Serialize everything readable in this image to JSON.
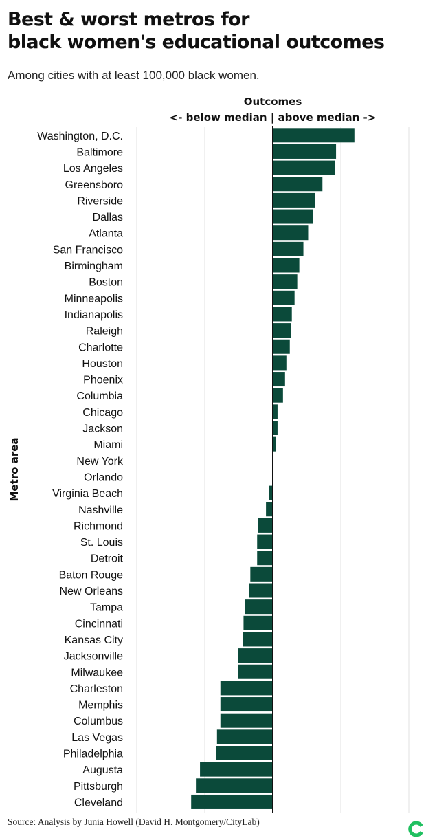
{
  "header": {
    "title_line1": "Best & worst metros for",
    "title_line2": "black women's educational outcomes",
    "subtitle": "Among cities with at least 100,000 black women."
  },
  "footer": {
    "source": "Source: Analysis by Junia Howell (David H. Montgomery/CityLab)"
  },
  "colors": {
    "bar": "#0b4a3a",
    "grid": "#e2e2e2",
    "axis": "#111111",
    "logo": "#20c060"
  },
  "icons": {
    "logo": "citylab-logo-icon"
  },
  "chart_data": {
    "type": "bar",
    "orientation": "horizontal",
    "title_lines": [
      "Outcomes",
      "<- below median | above median ->"
    ],
    "ylabel": "Metro area",
    "xlim": [
      -2,
      2
    ],
    "grid": true,
    "categories": [
      "Washington, D.C.",
      "Baltimore",
      "Los Angeles",
      "Greensboro",
      "Riverside",
      "Dallas",
      "Atlanta",
      "San Francisco",
      "Birmingham",
      "Boston",
      "Minneapolis",
      "Indianapolis",
      "Raleigh",
      "Charlotte",
      "Houston",
      "Phoenix",
      "Columbia",
      "Chicago",
      "Jackson",
      "Miami",
      "New York",
      "Orlando",
      "Virginia Beach",
      "Nashville",
      "Richmond",
      "St. Louis",
      "Detroit",
      "Baton Rouge",
      "New Orleans",
      "Tampa",
      "Cincinnati",
      "Kansas City",
      "Jacksonville",
      "Milwaukee",
      "Charleston",
      "Memphis",
      "Columbus",
      "Las Vegas",
      "Philadelphia",
      "Augusta",
      "Pittsburgh",
      "Cleveland"
    ],
    "values": [
      1.2,
      0.93,
      0.91,
      0.73,
      0.62,
      0.59,
      0.52,
      0.45,
      0.39,
      0.36,
      0.32,
      0.28,
      0.27,
      0.25,
      0.2,
      0.18,
      0.15,
      0.07,
      0.07,
      0.05,
      0.01,
      0.0,
      -0.06,
      -0.1,
      -0.22,
      -0.23,
      -0.23,
      -0.33,
      -0.35,
      -0.41,
      -0.43,
      -0.44,
      -0.51,
      -0.51,
      -0.77,
      -0.77,
      -0.77,
      -0.82,
      -0.83,
      -1.07,
      -1.13,
      -1.2
    ]
  }
}
